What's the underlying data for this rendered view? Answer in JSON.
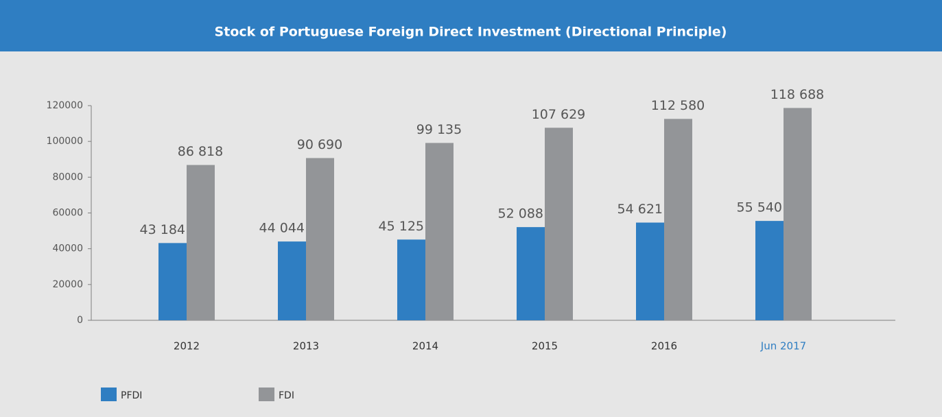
{
  "chart_data": {
    "type": "bar",
    "title": "Stock of Portuguese Foreign Direct Investment (Directional Principle)",
    "categories": [
      "2012",
      "2013",
      "2014",
      "2015",
      "2016",
      "Jun 2017"
    ],
    "category_colors": [
      "#333333",
      "#333333",
      "#333333",
      "#333333",
      "#333333",
      "#2f7ec2"
    ],
    "series": [
      {
        "name": "PFDI",
        "color": "#2f7ec2",
        "values": [
          43184,
          44044,
          45125,
          52088,
          54621,
          55540
        ],
        "value_labels": [
          "43 184",
          "44 044",
          "45 125",
          "52 088",
          "54 621",
          "55 540"
        ]
      },
      {
        "name": "FDI",
        "color": "#939598",
        "values": [
          86818,
          90690,
          99135,
          107629,
          112580,
          118688
        ],
        "value_labels": [
          "86 818",
          "90 690",
          "99 135",
          "107 629",
          "112 580",
          "118 688"
        ]
      }
    ],
    "ylim": [
      0,
      120000
    ],
    "yticks": [
      0,
      20000,
      40000,
      60000,
      80000,
      100000,
      120000
    ],
    "legend": "bottom-left"
  }
}
